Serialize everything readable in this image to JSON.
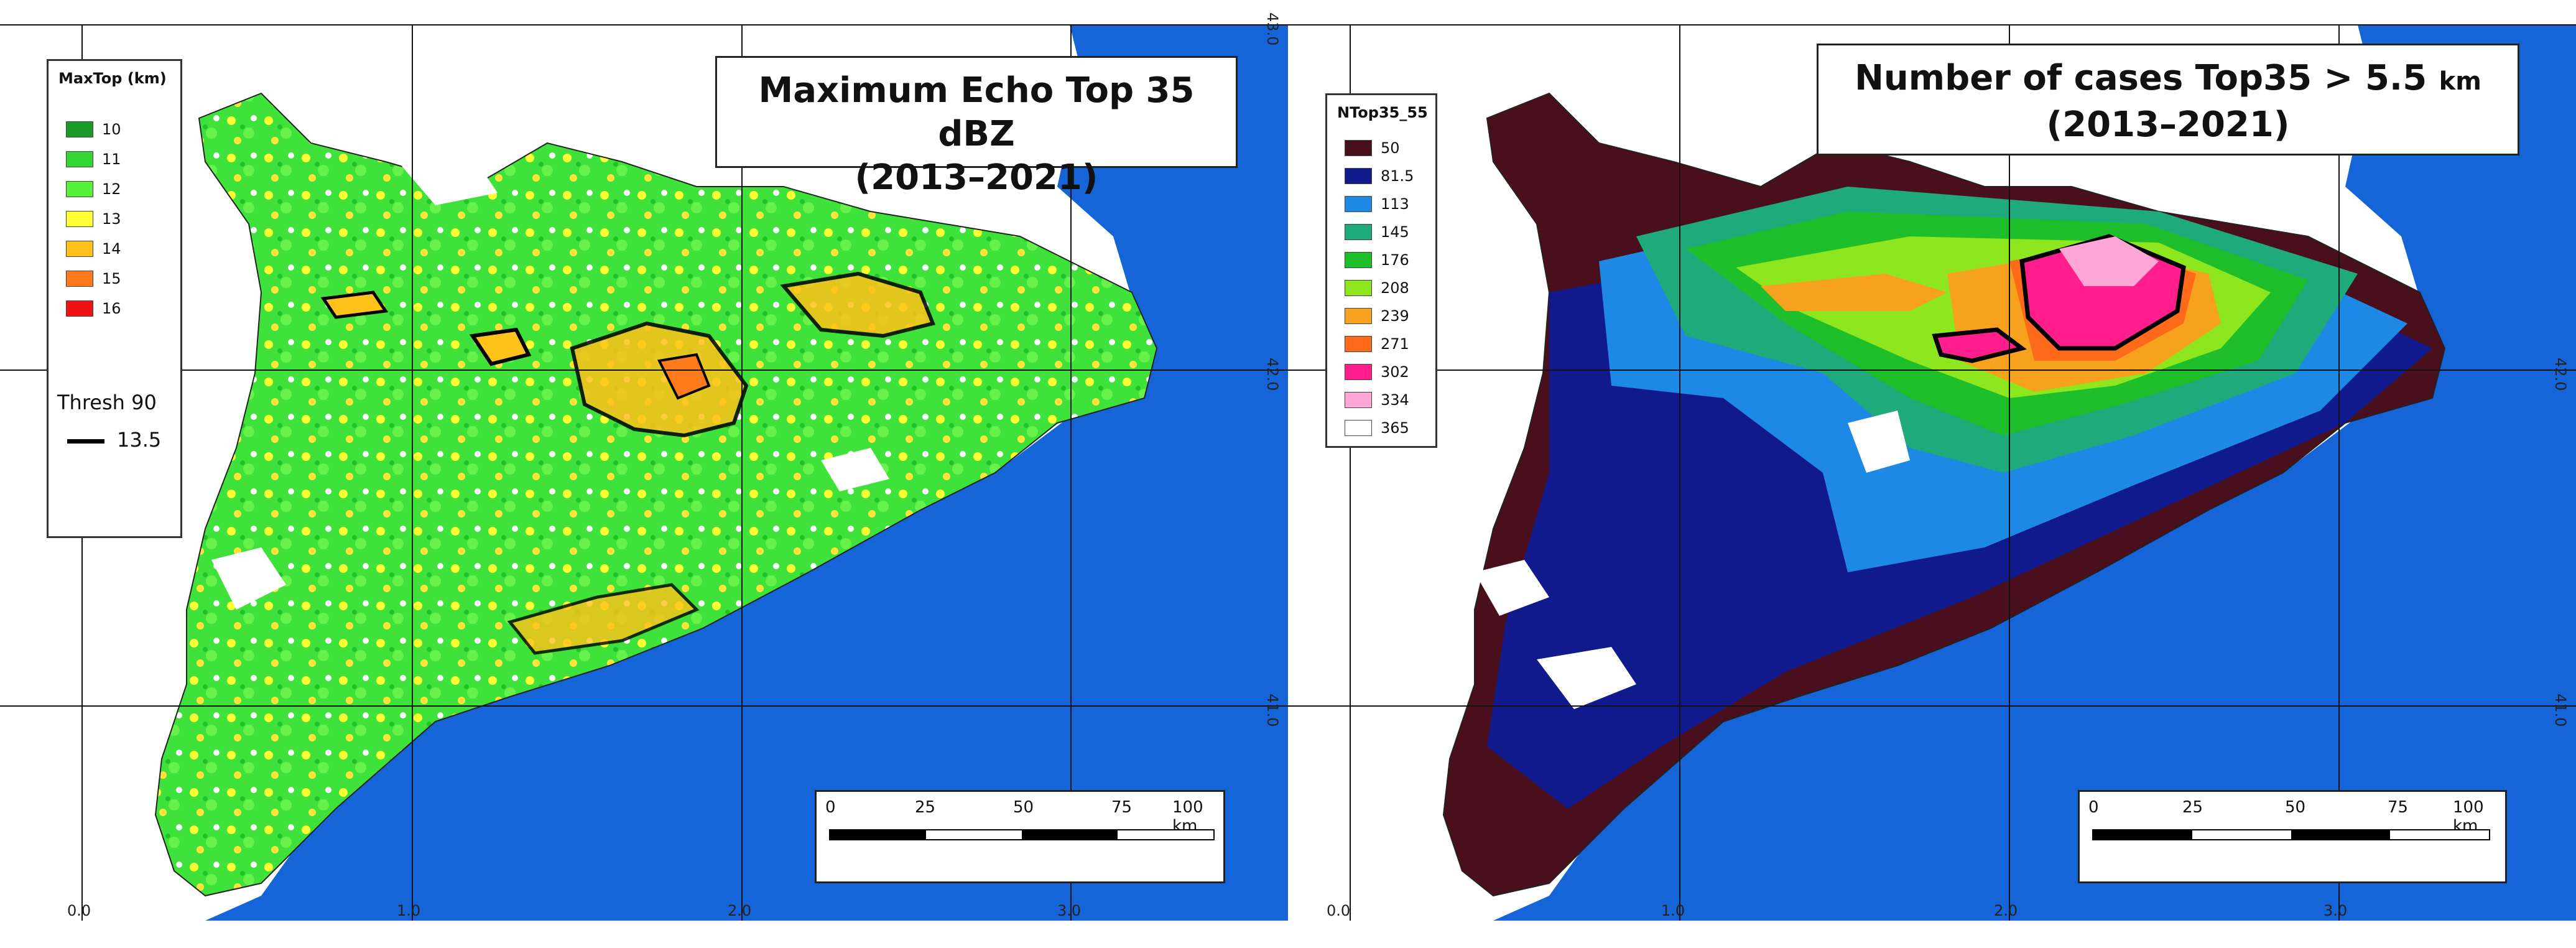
{
  "left_panel": {
    "legend": {
      "title": "MaxTop (km)",
      "items": [
        {
          "label": "10",
          "color": "#1a9a2a"
        },
        {
          "label": "11",
          "color": "#33d633"
        },
        {
          "label": "12",
          "color": "#55f03a"
        },
        {
          "label": "13",
          "color": "#ffff33"
        },
        {
          "label": "14",
          "color": "#ffc21a"
        },
        {
          "label": "15",
          "color": "#ff7a1a"
        },
        {
          "label": "16",
          "color": "#ee1111"
        }
      ],
      "thresh_title": "Thresh 90",
      "thresh_value": "13.5"
    },
    "title_line1": "Maximum Echo Top 35 dBZ",
    "title_line2": "(2013–2021)",
    "scalebar_ticks": [
      "0",
      "25",
      "50",
      "75",
      "100 km"
    ],
    "lon_labels": [
      "0.0",
      "1.0",
      "2.0",
      "3.0"
    ],
    "lat_labels": [
      "43.0",
      "42.0",
      "41.0"
    ]
  },
  "right_panel": {
    "legend": {
      "title": "NTop35_55",
      "items": [
        {
          "label": "50",
          "color": "#4a0f1c"
        },
        {
          "label": "81.5",
          "color": "#101a8c"
        },
        {
          "label": "113",
          "color": "#1e88e5"
        },
        {
          "label": "145",
          "color": "#1eaa7a"
        },
        {
          "label": "176",
          "color": "#1ebf2a"
        },
        {
          "label": "208",
          "color": "#8ee61e"
        },
        {
          "label": "239",
          "color": "#f7a21e"
        },
        {
          "label": "271",
          "color": "#ff6a1a"
        },
        {
          "label": "302",
          "color": "#ff1e8c"
        },
        {
          "label": "334",
          "color": "#ffa6d6"
        },
        {
          "label": "365",
          "color": "#ffffff"
        }
      ]
    },
    "title_line1": "Number of cases Top35  > 5.5",
    "title_unit": "km",
    "title_line2": "(2013–2021)",
    "scalebar_ticks": [
      "0",
      "25",
      "50",
      "75",
      "100 km"
    ],
    "lon_labels": [
      "0.0",
      "1.0",
      "2.0",
      "3.0"
    ],
    "lat_labels": [
      "42.0",
      "41.0"
    ]
  },
  "colors": {
    "sea": "#1565d8",
    "land_outside": "#ffffff",
    "grid": "#111111"
  }
}
